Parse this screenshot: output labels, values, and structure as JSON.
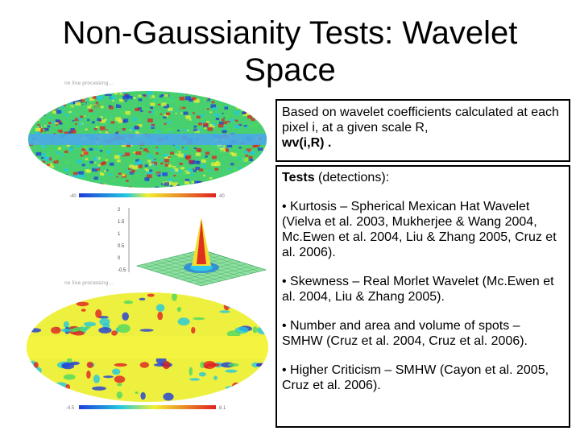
{
  "title": "Non-Gaussianity Tests: Wavelet Space",
  "top_map_label": "no line processing...",
  "bottom_map_label": "no line processing...",
  "top_colorbar": {
    "min": "-40",
    "max": "40"
  },
  "bottom_colorbar": {
    "min": "-4.5",
    "max": "8.1"
  },
  "surface_axis": {
    "ticks": [
      "2",
      "1.5",
      "1",
      "0.5",
      "0",
      "-0.5"
    ]
  },
  "box1": {
    "text": "Based on wavelet coefficients calculated at each pixel i, at a given scale R,",
    "formula": "wv(i,R) ."
  },
  "box2": {
    "heading_bold": "Tests",
    "heading_rest": " (detections):",
    "items": [
      "• Kurtosis – Spherical Mexican Hat Wavelet (Vielva et al. 2003, Mukherjee & Wang 2004, Mc.Ewen et al. 2004, Liu & Zhang 2005, Cruz et al. 2006).",
      "• Skewness – Real Morlet Wavelet (Mc.Ewen et al. 2004, Liu & Zhang 2005).",
      "• Number and area and volume of spots – SMHW (Cruz et al. 2004, Cruz et al. 2006).",
      "• Higher Criticism – SMHW (Cayon et al. 2005, Cruz et al. 2006)."
    ]
  },
  "colors": {
    "map_cold": "#1e3cd8",
    "map_mid": "#22c8e0",
    "map_green": "#4cd860",
    "map_yellow": "#f0f030",
    "map_hot": "#e02020",
    "surface": "#20c060"
  }
}
